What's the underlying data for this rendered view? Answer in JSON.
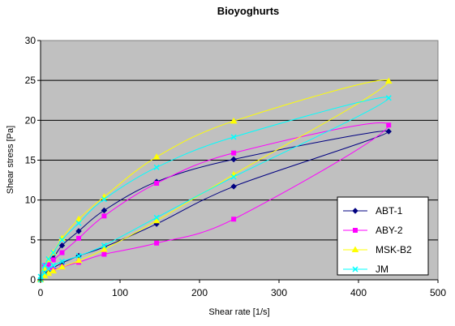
{
  "chart_data": {
    "type": "line",
    "title": "Bioyoghurts",
    "xlabel": "Shear rate [1/s]",
    "ylabel": "Shear stress [Pa]",
    "xlim": [
      0,
      500
    ],
    "ylim": [
      0,
      30
    ],
    "xticks": [
      "0",
      "100",
      "200",
      "300",
      "400",
      "500"
    ],
    "yticks": [
      "0",
      "5",
      "10",
      "15",
      "20",
      "25",
      "30"
    ],
    "grid": "horizontal",
    "plot_background": "#c0c0c0",
    "legend_position": "bottom-right",
    "series": [
      {
        "name": "ABT-1",
        "color": "#000080",
        "marker": "diamond",
        "up_x": [
          0,
          5,
          10,
          16,
          27,
          48,
          80,
          146,
          243,
          438
        ],
        "up_y": [
          0,
          0.8,
          1.2,
          1.5,
          2.1,
          3.0,
          4.1,
          7.0,
          11.7,
          18.6
        ],
        "down_x": [
          438,
          243,
          146,
          80,
          48,
          27,
          16,
          10,
          5,
          0
        ],
        "down_y": [
          18.6,
          15.1,
          12.3,
          8.7,
          6.1,
          4.3,
          2.7,
          2.0,
          1.2,
          0
        ]
      },
      {
        "name": "ABY-2",
        "color": "#ff00ff",
        "marker": "square",
        "up_x": [
          0,
          5,
          10,
          16,
          27,
          48,
          80,
          146,
          243,
          438
        ],
        "up_y": [
          0,
          1.6,
          1.5,
          1.3,
          1.6,
          2.2,
          3.2,
          4.6,
          7.6,
          19.4
        ],
        "down_x": [
          438,
          243,
          146,
          80,
          48,
          27,
          16,
          10,
          5,
          0
        ],
        "down_y": [
          19.4,
          15.9,
          12.1,
          8.0,
          5.2,
          3.4,
          2.5,
          2.1,
          1.8,
          0
        ]
      },
      {
        "name": "MSK-B2",
        "color": "#ffff00",
        "marker": "triangle",
        "up_x": [
          0,
          5,
          10,
          16,
          27,
          48,
          80,
          146,
          243,
          438
        ],
        "up_y": [
          0,
          0.5,
          0.8,
          1.1,
          1.6,
          2.4,
          3.8,
          7.4,
          13.2,
          24.9
        ],
        "down_x": [
          438,
          243,
          146,
          80,
          48,
          27,
          16,
          10,
          5,
          0
        ],
        "down_y": [
          24.9,
          19.9,
          15.4,
          10.4,
          7.6,
          5.2,
          3.4,
          2.5,
          1.4,
          0
        ]
      },
      {
        "name": "JM",
        "color": "#00ffff",
        "marker": "x",
        "up_x": [
          0,
          5,
          10,
          16,
          27,
          48,
          80,
          146,
          243,
          438
        ],
        "up_y": [
          0,
          0.9,
          1.4,
          1.8,
          2.3,
          3.0,
          4.3,
          7.8,
          12.9,
          22.8
        ],
        "down_x": [
          438,
          243,
          146,
          80,
          48,
          27,
          16,
          10,
          5,
          0
        ],
        "down_y": [
          22.8,
          17.9,
          14.1,
          10.1,
          7.1,
          5.0,
          3.4,
          2.6,
          1.8,
          0.4
        ]
      }
    ]
  }
}
